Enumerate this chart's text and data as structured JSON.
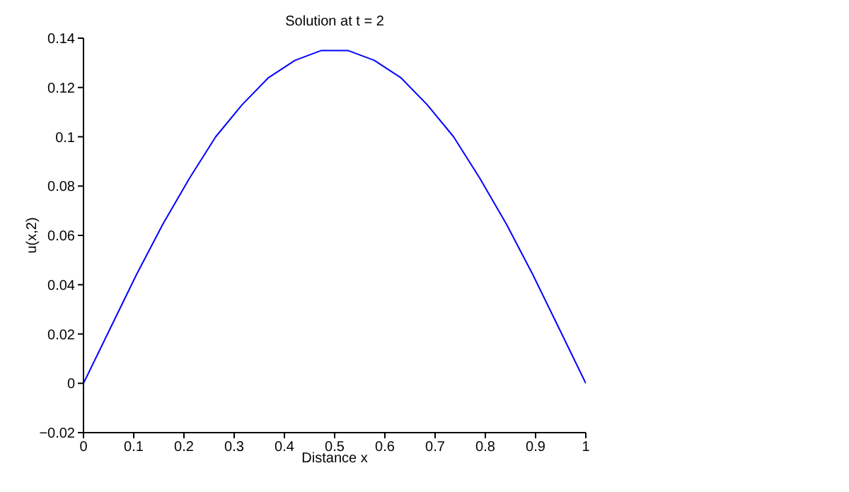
{
  "chart_data": {
    "type": "line",
    "title": "Solution at t = 2",
    "xlabel": "Distance x",
    "ylabel": "u(x,2)",
    "x": [
      0,
      0.0526,
      0.1053,
      0.1579,
      0.2105,
      0.2632,
      0.3158,
      0.3684,
      0.4211,
      0.4737,
      0.5263,
      0.5789,
      0.6316,
      0.6842,
      0.7368,
      0.7895,
      0.8421,
      0.8947,
      0.9474,
      1
    ],
    "series": [
      {
        "color": "#0000ff",
        "values": [
          0,
          0.022,
          0.044,
          0.0645,
          0.083,
          0.1,
          0.113,
          0.124,
          0.131,
          0.135,
          0.135,
          0.131,
          0.124,
          0.113,
          0.1,
          0.083,
          0.0645,
          0.044,
          0.022,
          0
        ]
      }
    ],
    "xlim": [
      0,
      1
    ],
    "xticks": [
      0,
      0.1,
      0.2,
      0.3,
      0.4,
      0.5,
      0.6,
      0.7,
      0.8,
      0.9,
      1
    ],
    "ylim": [
      -0.02,
      0.14
    ],
    "yticks": [
      -0.02,
      0,
      0.02,
      0.04,
      0.06,
      0.08,
      0.1,
      0.12,
      0.14
    ],
    "grid": false,
    "legend": false,
    "marker": "none",
    "line_style": "solid"
  }
}
